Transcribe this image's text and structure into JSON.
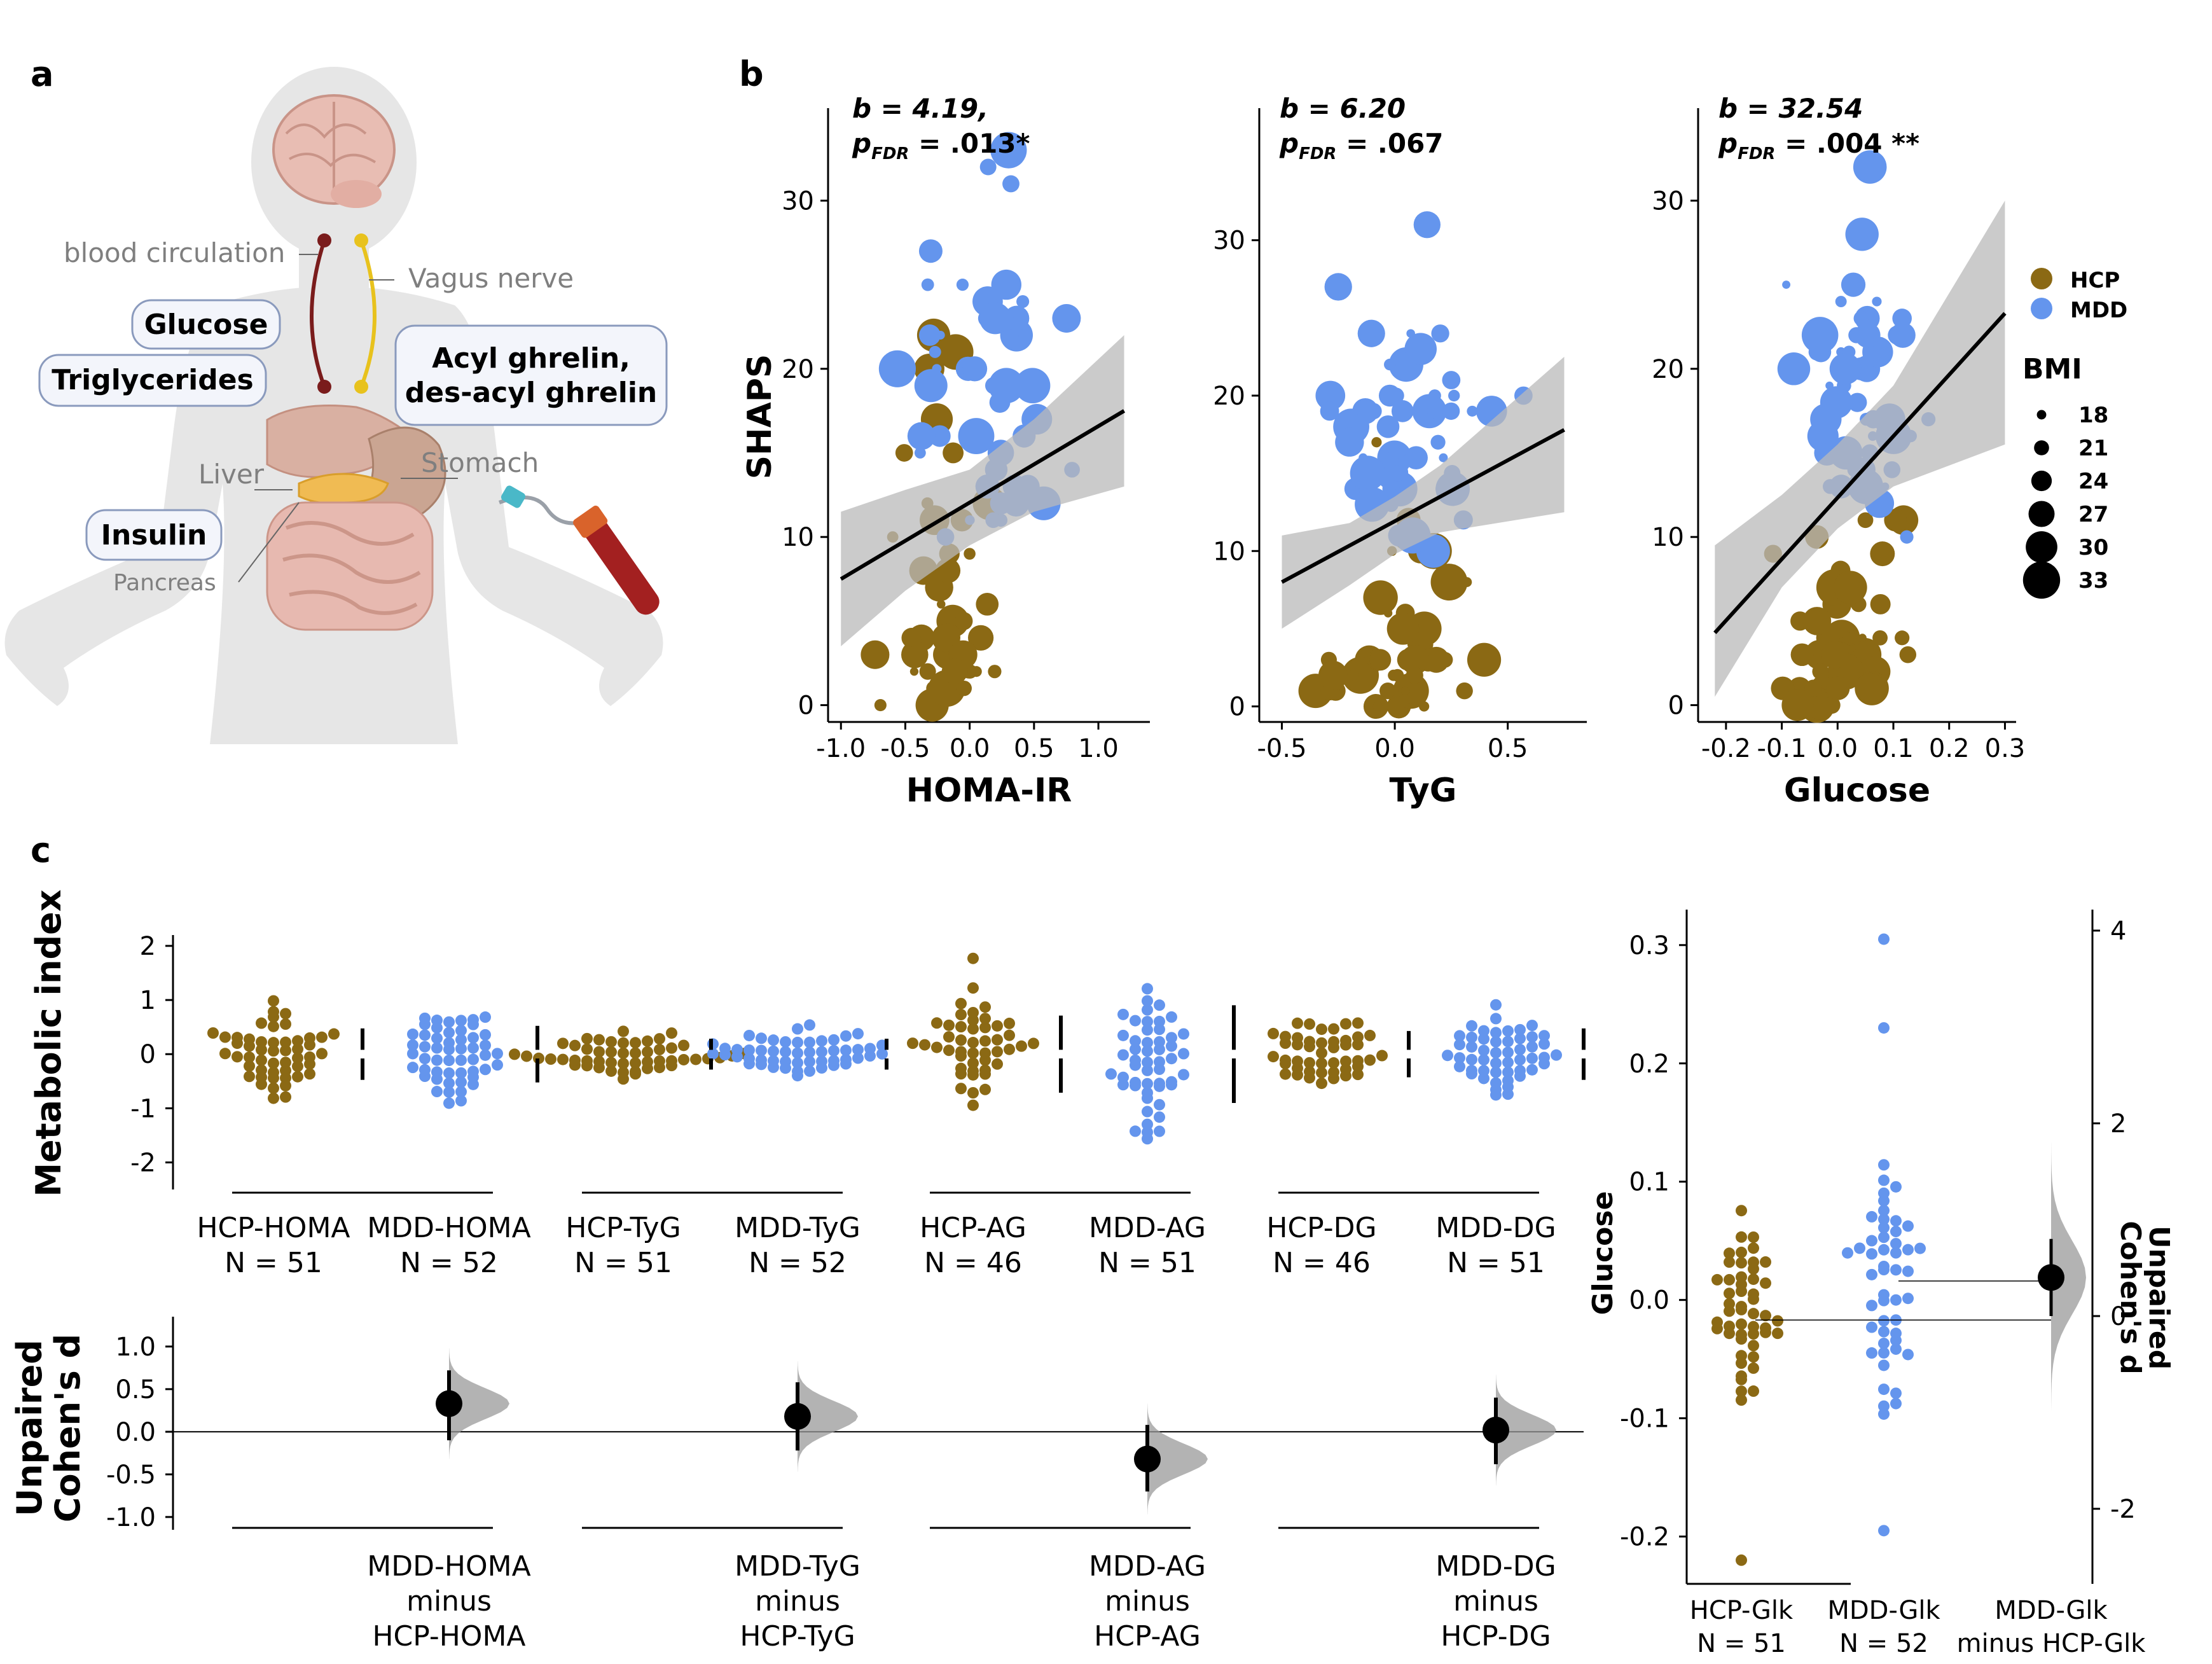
{
  "panels": {
    "a": "a",
    "b": "b",
    "c": "c"
  },
  "colors": {
    "hcp": "#8b6914",
    "mdd": "#6495ed",
    "ci_band": "#b9b9b9",
    "fit": "#000000",
    "body": "#e6e6e6"
  },
  "anatomy": {
    "labels": {
      "circulation": "blood circulation",
      "vagus": "Vagus nerve",
      "liver": "Liver",
      "stomach": "Stomach",
      "pancreas": "Pancreas"
    },
    "boxes": {
      "glucose": "Glucose",
      "triglycerides": "Triglycerides",
      "ghrelin_line1": "Acyl ghrelin,",
      "ghrelin_line2": "des-acyl ghrelin",
      "insulin": "Insulin"
    },
    "icons": [
      "body-silhouette-icon",
      "brain-icon",
      "liver-icon",
      "stomach-icon",
      "pancreas-icon",
      "intestine-icon",
      "blood-tube-icon",
      "syringe-icon"
    ]
  },
  "legend": {
    "hcp": "HCP",
    "mdd": "MDD",
    "bmi_title": "BMI",
    "bmi_values": [
      "18",
      "21",
      "24",
      "27",
      "30",
      "33"
    ]
  },
  "chart_data": [
    {
      "type": "scatter",
      "panel": "b",
      "id": "homa",
      "xlabel": "HOMA-IR",
      "ylabel": "SHAPS",
      "xlim": [
        -1.1,
        1.4
      ],
      "ylim": [
        -1,
        35.5
      ],
      "xticks": [
        -1.0,
        -0.5,
        0.0,
        0.5,
        1.0
      ],
      "yticks": [
        0,
        10,
        20,
        30
      ],
      "stat_b": "b = 4.19,",
      "stat_p": "= .013*",
      "fit": {
        "x": [
          -1.0,
          1.2
        ],
        "y": [
          7.5,
          17.5
        ]
      },
      "ci": {
        "x": [
          -1.0,
          -0.5,
          0.0,
          0.5,
          1.2
        ],
        "lo": [
          3.5,
          6.8,
          9.5,
          11.5,
          13.0
        ],
        "hi": [
          11.5,
          12.8,
          14.0,
          17.0,
          22.0
        ]
      }
    },
    {
      "type": "scatter",
      "panel": "b",
      "id": "tyg",
      "xlabel": "TyG",
      "ylabel": "",
      "xlim": [
        -0.6,
        0.85
      ],
      "ylim": [
        -1,
        38.5
      ],
      "xticks": [
        -0.5,
        0.0,
        0.5
      ],
      "yticks": [
        0,
        10,
        20,
        30
      ],
      "stat_b": "b = 6.20",
      "stat_p": "= .067",
      "fit": {
        "x": [
          -0.5,
          0.75
        ],
        "y": [
          8.0,
          17.8
        ]
      },
      "ci": {
        "x": [
          -0.5,
          -0.2,
          0.0,
          0.2,
          0.75
        ],
        "lo": [
          5.0,
          7.8,
          9.8,
          11.2,
          12.5
        ],
        "hi": [
          11.0,
          11.8,
          13.5,
          15.5,
          22.5
        ]
      }
    },
    {
      "type": "scatter",
      "panel": "b",
      "id": "glucose",
      "xlabel": "Glucose",
      "ylabel": "",
      "xlim": [
        -0.25,
        0.32
      ],
      "ylim": [
        -1,
        35.5
      ],
      "xticks": [
        -0.2,
        -0.1,
        0.0,
        0.1,
        0.2,
        0.3
      ],
      "yticks": [
        0,
        10,
        20,
        30
      ],
      "stat_b": "b = 32.54",
      "stat_p": "= .004 **",
      "fit": {
        "x": [
          -0.22,
          0.3
        ],
        "y": [
          4.3,
          23.3
        ]
      },
      "ci": {
        "x": [
          -0.22,
          -0.1,
          0.0,
          0.1,
          0.3
        ],
        "lo": [
          0.5,
          7.0,
          10.5,
          13.0,
          15.5
        ],
        "hi": [
          9.5,
          12.5,
          15.5,
          19.0,
          30.0
        ]
      }
    },
    {
      "type": "swarm",
      "panel": "c",
      "id": "metabolic-index",
      "ylabel": "Metabolic index",
      "ylim": [
        -2.5,
        2.2
      ],
      "yticks": [
        2,
        1,
        0,
        -1,
        -2
      ],
      "groups": [
        {
          "label": "HCP-HOMA",
          "n": "N = 51",
          "group": "hcp"
        },
        {
          "label": "MDD-HOMA",
          "n": "N = 52",
          "group": "mdd"
        },
        {
          "label": "HCP-TyG",
          "n": "N = 51",
          "group": "hcp"
        },
        {
          "label": "MDD-TyG",
          "n": "N = 52",
          "group": "mdd"
        },
        {
          "label": "HCP-AG",
          "n": "N = 46",
          "group": "hcp"
        },
        {
          "label": "MDD-AG",
          "n": "N = 51",
          "group": "mdd"
        },
        {
          "label": "HCP-DG",
          "n": "N = 46",
          "group": "hcp"
        },
        {
          "label": "MDD-DG",
          "n": "N = 51",
          "group": "mdd"
        }
      ]
    },
    {
      "type": "estimation",
      "panel": "c",
      "id": "cohens-d",
      "ylabel_line1": "Unpaired",
      "ylabel_line2": "Cohen's d",
      "ylim": [
        -1.15,
        1.35
      ],
      "yticks": [
        1.0,
        0.5,
        0.0,
        -0.5,
        -1.0
      ],
      "contrasts": [
        {
          "line1": "MDD-HOMA",
          "line2": "minus",
          "line3": "HCP-HOMA",
          "d": 0.33,
          "ci": [
            -0.1,
            0.72
          ]
        },
        {
          "line1": "MDD-TyG",
          "line2": "minus",
          "line3": "HCP-TyG",
          "d": 0.18,
          "ci": [
            -0.22,
            0.58
          ]
        },
        {
          "line1": "MDD-AG",
          "line2": "minus",
          "line3": "HCP-AG",
          "d": -0.32,
          "ci": [
            -0.7,
            0.08
          ]
        },
        {
          "line1": "MDD-DG",
          "line2": "minus",
          "line3": "HCP-DG",
          "d": 0.02,
          "ci": [
            -0.38,
            0.4
          ]
        }
      ]
    },
    {
      "type": "swarm",
      "panel": "c",
      "id": "glucose-gardner-altman",
      "ylabel": "Glucose",
      "ylim": [
        -0.24,
        0.33
      ],
      "yticks": [
        0.3,
        0.2,
        0.1,
        0.0,
        -0.1,
        -0.2
      ],
      "right_ylabel_line1": "Unpaired",
      "right_ylabel_line2": "Cohen's d",
      "right_yticks": [
        4,
        2,
        0,
        -2
      ],
      "groups": [
        {
          "label": "HCP-Glk",
          "n": "N = 51",
          "group": "hcp",
          "mean": -0.017
        },
        {
          "label": "MDD-Glk",
          "n": "N = 52",
          "group": "mdd",
          "mean": 0.016
        }
      ],
      "contrast": {
        "line1": "MDD-Glk",
        "line2": "minus HCP-Glk",
        "d": 0.4,
        "ci": [
          0.0,
          0.8
        ]
      }
    }
  ]
}
